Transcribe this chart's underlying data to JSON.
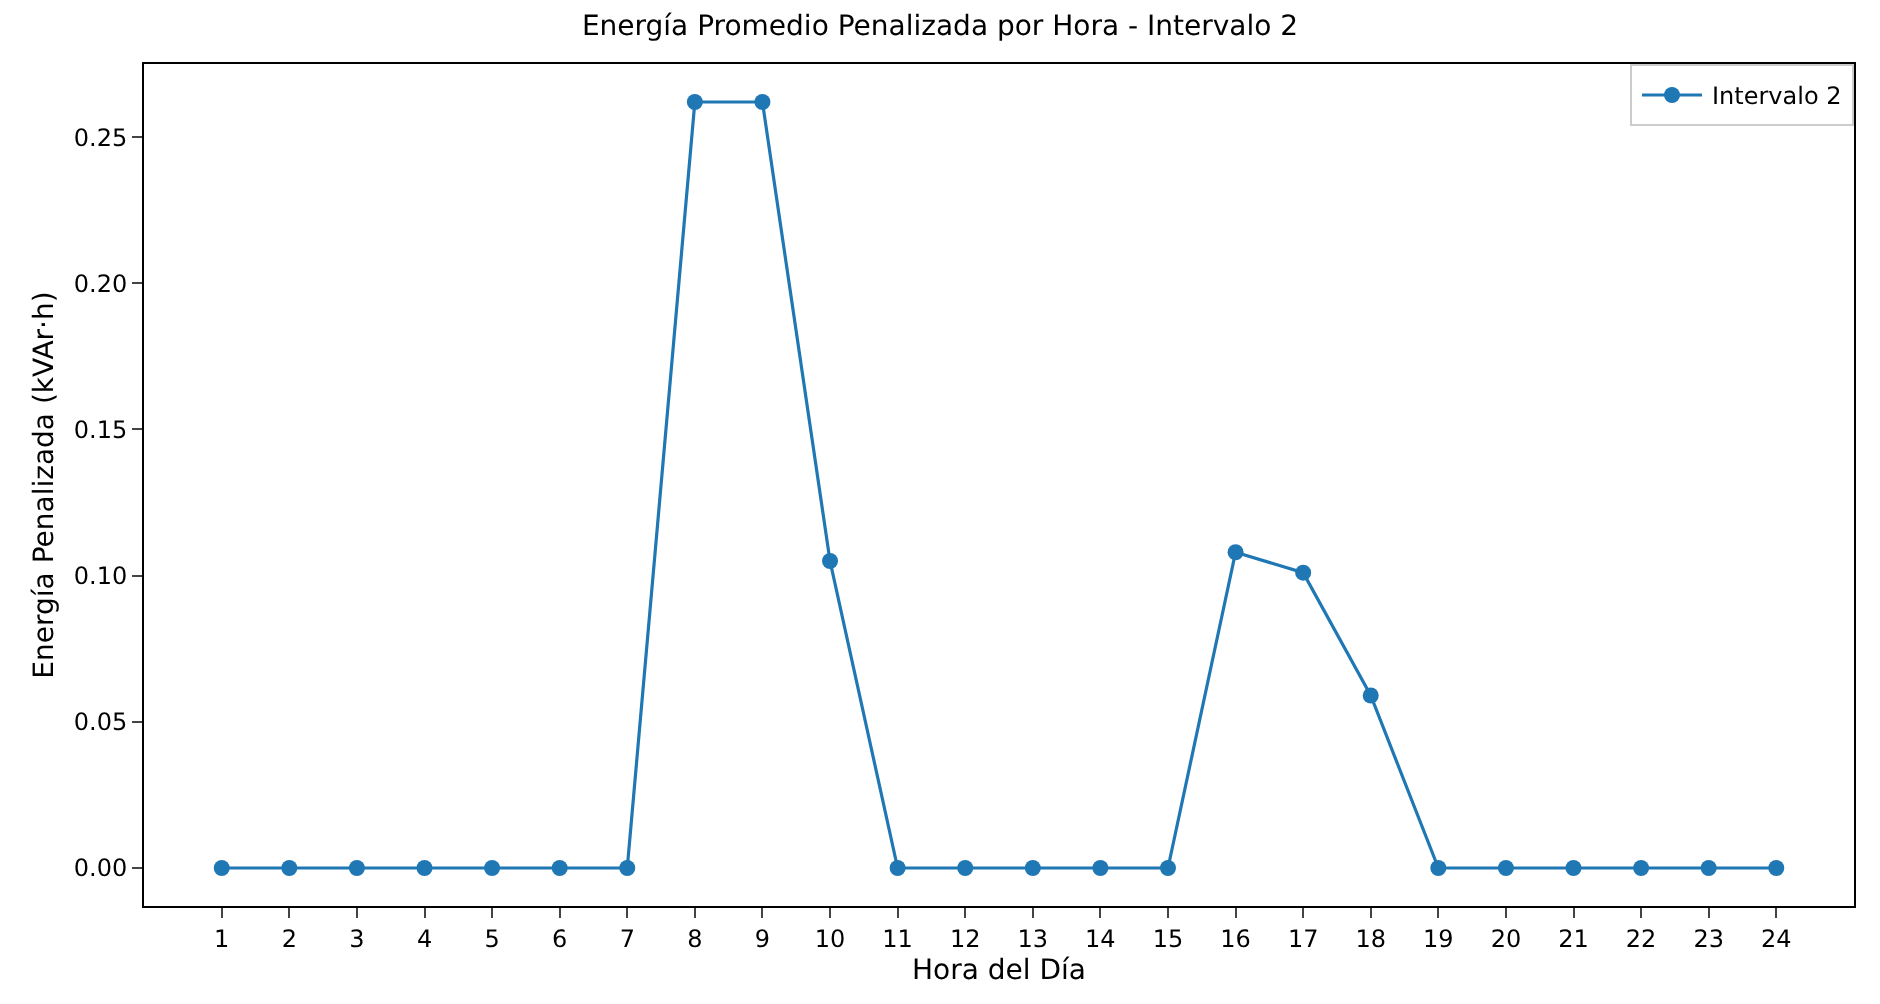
{
  "chart_data": {
    "type": "line",
    "title": "Energía Promedio Penalizada por Hora - Intervalo 2",
    "xlabel": "Hora del Día",
    "ylabel": "Energía Penalizada (kVAr·h)",
    "x": [
      1,
      2,
      3,
      4,
      5,
      6,
      7,
      8,
      9,
      10,
      11,
      12,
      13,
      14,
      15,
      16,
      17,
      18,
      19,
      20,
      21,
      22,
      23,
      24
    ],
    "series": [
      {
        "name": "Intervalo 2",
        "color": "#1f77b4",
        "values": [
          0,
          0,
          0,
          0,
          0,
          0,
          0,
          0.262,
          0.262,
          0.105,
          0,
          0,
          0,
          0,
          0,
          0.108,
          0.101,
          0.059,
          0,
          0,
          0,
          0,
          0,
          0
        ]
      }
    ],
    "xlim": [
      -0.15,
      25.15
    ],
    "xticks": [
      1,
      2,
      3,
      4,
      5,
      6,
      7,
      8,
      9,
      10,
      11,
      12,
      13,
      14,
      15,
      16,
      17,
      18,
      19,
      20,
      21,
      22,
      23,
      24
    ],
    "ylim": [
      -0.013,
      0.275
    ],
    "yticks": [
      {
        "value": 0,
        "label": "0.00"
      },
      {
        "value": 0.05,
        "label": "0.05"
      },
      {
        "value": 0.1,
        "label": "0.10"
      },
      {
        "value": 0.15,
        "label": "0.15"
      },
      {
        "value": 0.2,
        "label": "0.20"
      },
      {
        "value": 0.25,
        "label": "0.25"
      }
    ],
    "legend": "top right",
    "marker": "circle",
    "line_style": "solid"
  }
}
